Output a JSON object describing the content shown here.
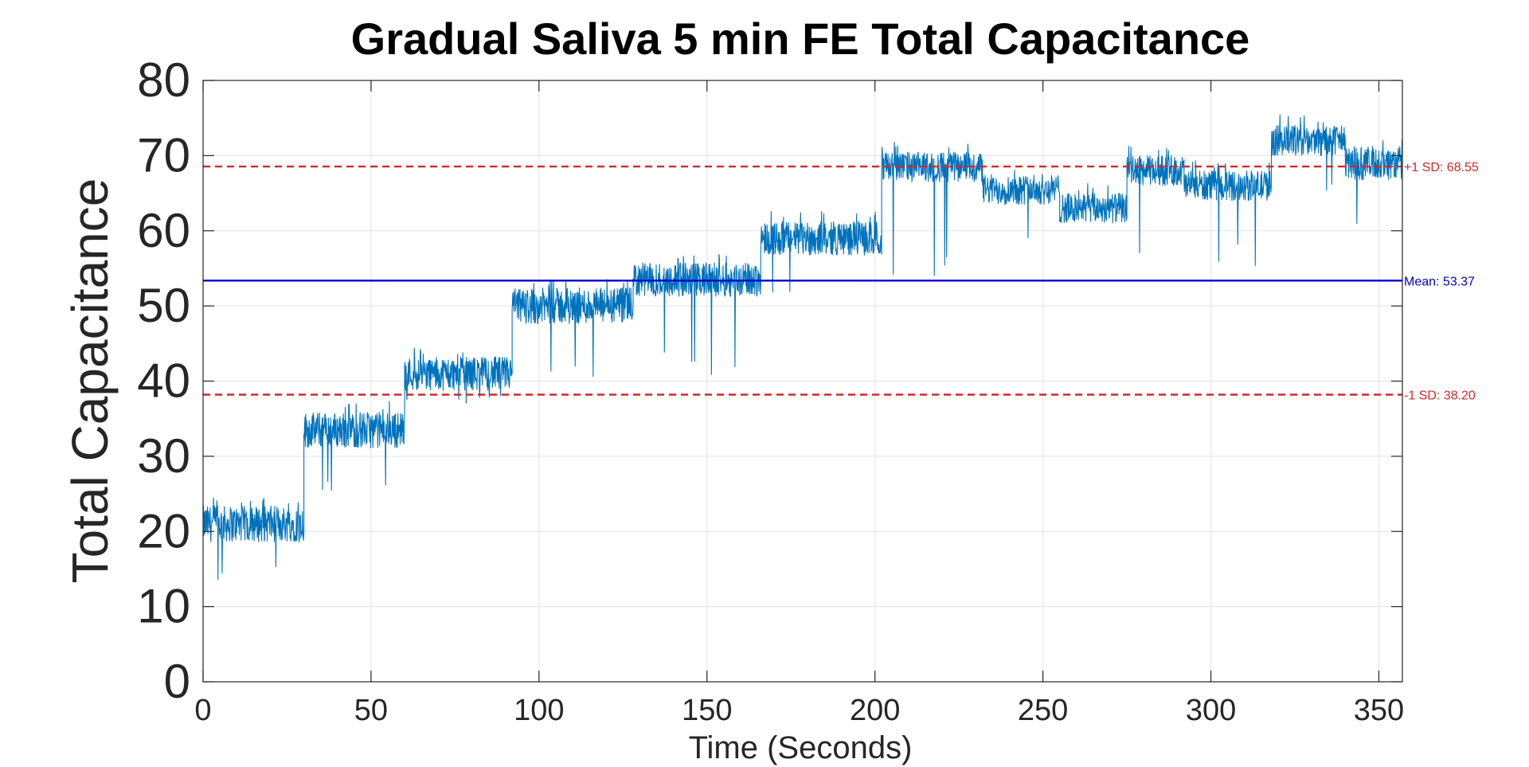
{
  "chart_data": {
    "type": "line",
    "title": "Gradual Saliva 5 min FE Total Capacitance",
    "xlabel": "Time (Seconds)",
    "ylabel": "Total Capacitance",
    "xlim": [
      0,
      357
    ],
    "ylim": [
      0,
      80
    ],
    "xticks": [
      0,
      50,
      100,
      150,
      200,
      250,
      300,
      350
    ],
    "yticks": [
      0,
      10,
      20,
      30,
      40,
      50,
      60,
      70,
      80
    ],
    "grid": true,
    "series": [
      {
        "color": "#0072BD",
        "style": "noisy-signal",
        "segments": [
          {
            "x": [
              0,
              30
            ],
            "level": 21,
            "noise": 3,
            "min": 13
          },
          {
            "x": [
              30,
              60
            ],
            "level": 33.5,
            "noise": 3,
            "min": 24
          },
          {
            "x": [
              60,
              92
            ],
            "level": 41,
            "noise": 2.8,
            "min": 37
          },
          {
            "x": [
              92,
              128
            ],
            "level": 50,
            "noise": 3,
            "min": 40
          },
          {
            "x": [
              128,
              166
            ],
            "level": 53.5,
            "noise": 2.8,
            "min": 40
          },
          {
            "x": [
              166,
              202
            ],
            "level": 59,
            "noise": 2.8,
            "min": 49
          },
          {
            "x": [
              202,
              232
            ],
            "level": 68.5,
            "noise": 2.5,
            "min": 53
          },
          {
            "x": [
              232,
              255
            ],
            "level": 65.5,
            "noise": 2.5,
            "min": 57
          },
          {
            "x": [
              255,
              275
            ],
            "level": 63,
            "noise": 2.5,
            "min": 52
          },
          {
            "x": [
              275,
              292
            ],
            "level": 68,
            "noise": 2.5,
            "min": 56
          },
          {
            "x": [
              292,
              318
            ],
            "level": 66,
            "noise": 2.5,
            "min": 55
          },
          {
            "x": [
              318,
              340
            ],
            "level": 72,
            "noise": 2.5,
            "min": 65
          },
          {
            "x": [
              340,
              357
            ],
            "level": 69,
            "noise": 2.8,
            "min": 60
          }
        ]
      }
    ],
    "reference_lines": [
      {
        "name": "+1 SD",
        "value": 68.55,
        "label": "+1 SD: 68.55",
        "color": "#D62728",
        "style": "dashed"
      },
      {
        "name": "Mean",
        "value": 53.37,
        "label": "Mean: 53.37",
        "color": "#0000CC",
        "style": "solid"
      },
      {
        "name": "-1 SD",
        "value": 38.2,
        "label": "-1 SD: 38.20",
        "color": "#D62728",
        "style": "dashed"
      }
    ]
  }
}
